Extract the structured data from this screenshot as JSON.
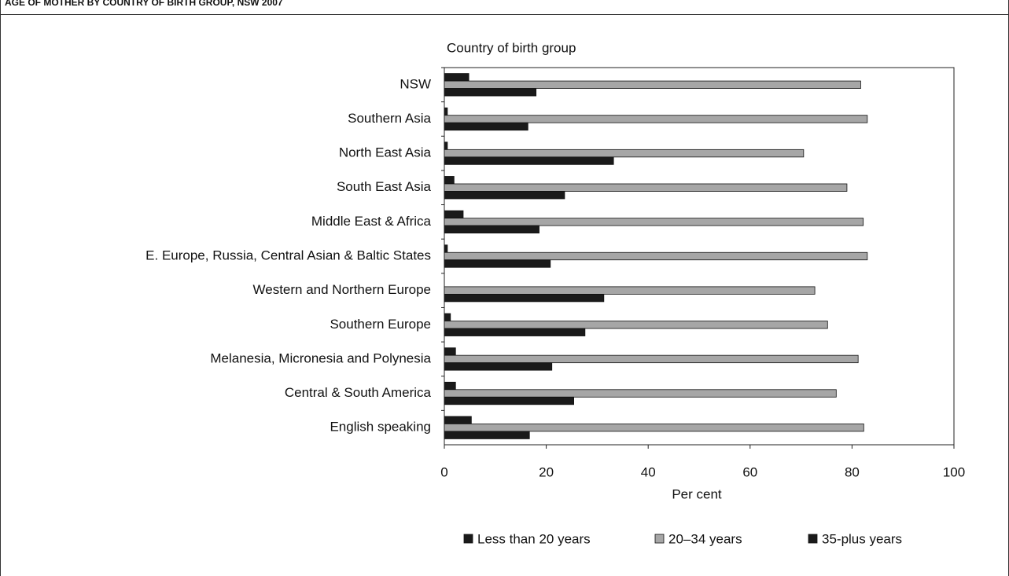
{
  "chart_data": {
    "type": "bar",
    "orientation": "horizontal",
    "title": "AGE OF MOTHER BY COUNTRY OF BIRTH GROUP, NSW 2007",
    "y_label": "Country of birth group",
    "x_label": "Per cent",
    "categories": [
      "NSW",
      "Southern Asia",
      "North East Asia",
      "South East Asia",
      "Middle East & Africa",
      "E. Europe, Russia, Central Asian & Baltic States",
      "Western and Northern Europe",
      "Southern Europe",
      "Melanesia, Micronesia and Polynesia",
      "Central & South America",
      "English speaking"
    ],
    "series": [
      {
        "name": "Less than 20 years",
        "color": "#1a1a1a",
        "values": [
          4.8,
          0.6,
          0.6,
          1.9,
          3.7,
          0.6,
          0,
          1.2,
          2.2,
          2.2,
          5.3
        ]
      },
      {
        "name": "20–34 years",
        "color": "#a6a6a6",
        "values": [
          81.7,
          83.0,
          70.5,
          79.0,
          82.2,
          83.0,
          72.7,
          75.2,
          81.2,
          76.9,
          82.3
        ]
      },
      {
        "name": "35-plus years",
        "color": "#1a1a1a",
        "values": [
          18.0,
          16.4,
          33.2,
          23.6,
          18.6,
          20.8,
          31.3,
          27.6,
          21.1,
          25.4,
          16.7
        ]
      }
    ],
    "xlim": [
      0,
      100
    ],
    "xticks": [
      0,
      20,
      40,
      60,
      80,
      100
    ]
  }
}
